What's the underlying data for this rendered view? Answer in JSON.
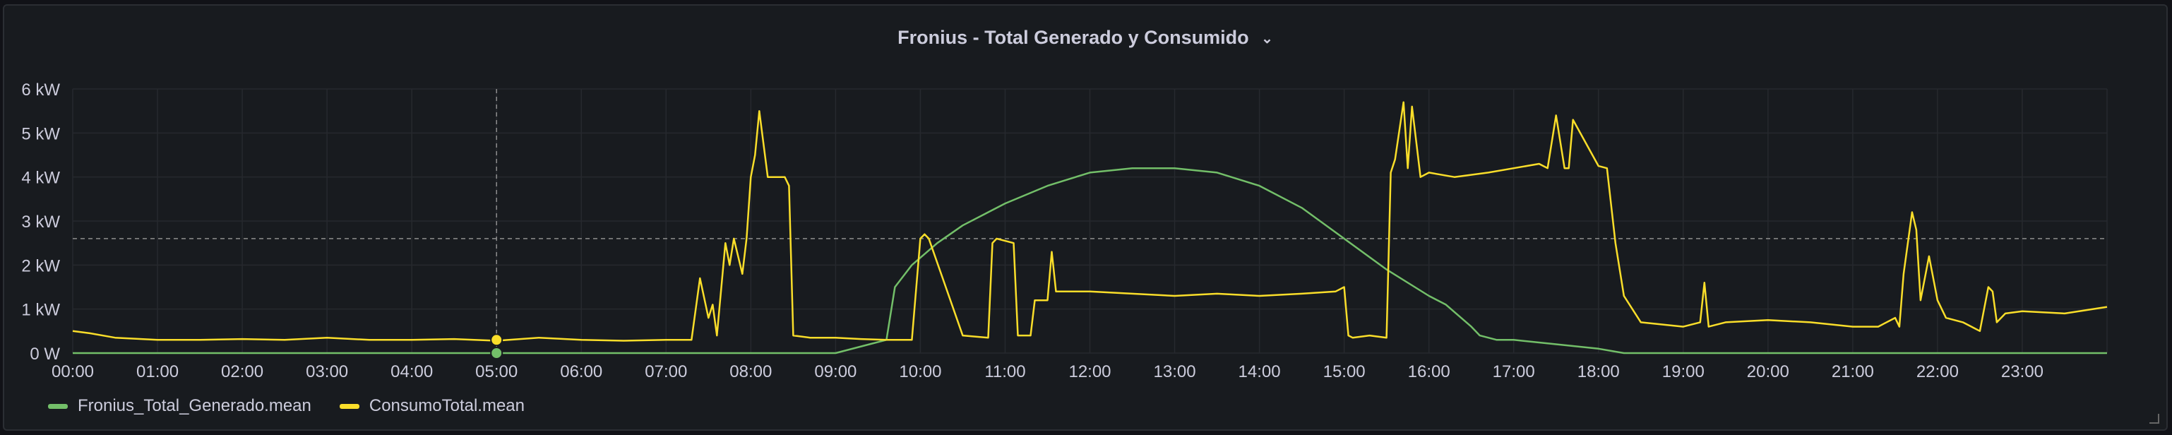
{
  "panel": {
    "title": "Fronius - Total Generado y Consumido",
    "menu_icon": "chevron-down-icon"
  },
  "chart_data": {
    "type": "line",
    "xlabel": "",
    "ylabel": "",
    "xlim": [
      0,
      24
    ],
    "ylim": [
      0,
      6
    ],
    "x_ticks": [
      "00:00",
      "01:00",
      "02:00",
      "03:00",
      "04:00",
      "05:00",
      "06:00",
      "07:00",
      "08:00",
      "09:00",
      "10:00",
      "11:00",
      "12:00",
      "13:00",
      "14:00",
      "15:00",
      "16:00",
      "17:00",
      "18:00",
      "19:00",
      "20:00",
      "21:00",
      "22:00",
      "23:00"
    ],
    "y_ticks": [
      "0 W",
      "1 kW",
      "2 kW",
      "3 kW",
      "4 kW",
      "5 kW",
      "6 kW"
    ],
    "grid": true,
    "legend": "bottom-left",
    "threshold_kw": 2.6,
    "cursor_time": 5.0,
    "series": [
      {
        "name": "Fronius_Total_Generado.mean",
        "color": "#73bf69",
        "x": [
          0,
          9.0,
          9.4,
          9.6,
          9.7,
          9.9,
          10.2,
          10.5,
          11.0,
          11.5,
          12.0,
          12.5,
          13.0,
          13.5,
          14.0,
          14.5,
          15.0,
          15.5,
          16.0,
          16.2,
          16.5,
          16.6,
          16.8,
          17.0,
          17.5,
          18.0,
          18.3,
          18.5,
          24
        ],
        "y": [
          0,
          0.0,
          0.2,
          0.3,
          1.5,
          2.0,
          2.5,
          2.9,
          3.4,
          3.8,
          4.1,
          4.2,
          4.2,
          4.1,
          3.8,
          3.3,
          2.6,
          1.9,
          1.3,
          1.1,
          0.6,
          0.4,
          0.3,
          0.3,
          0.2,
          0.1,
          0.0,
          0.0,
          0
        ]
      },
      {
        "name": "ConsumoTotal.mean",
        "color": "#fade2a",
        "x": [
          0,
          0.2,
          0.5,
          1.0,
          1.5,
          2.0,
          2.5,
          3.0,
          3.5,
          4.0,
          4.5,
          5.0,
          5.5,
          6.0,
          6.5,
          7.0,
          7.3,
          7.4,
          7.5,
          7.55,
          7.6,
          7.7,
          7.75,
          7.8,
          7.9,
          7.95,
          8.0,
          8.05,
          8.1,
          8.2,
          8.3,
          8.35,
          8.4,
          8.45,
          8.5,
          8.7,
          9.0,
          9.3,
          9.6,
          9.9,
          10.0,
          10.05,
          10.1,
          10.5,
          10.8,
          10.85,
          10.9,
          11.1,
          11.15,
          11.3,
          11.35,
          11.5,
          11.55,
          11.6,
          12.0,
          12.5,
          13.0,
          13.5,
          14.0,
          14.5,
          14.9,
          15.0,
          15.05,
          15.1,
          15.3,
          15.5,
          15.55,
          15.6,
          15.7,
          15.75,
          15.8,
          15.9,
          16.0,
          16.3,
          16.7,
          17.0,
          17.3,
          17.4,
          17.5,
          17.6,
          17.65,
          17.7,
          18.0,
          18.1,
          18.2,
          18.3,
          18.5,
          19.0,
          19.2,
          19.25,
          19.3,
          19.5,
          20.0,
          20.5,
          21.0,
          21.3,
          21.5,
          21.55,
          21.6,
          21.7,
          21.75,
          21.8,
          21.9,
          22.0,
          22.1,
          22.3,
          22.5,
          22.6,
          22.65,
          22.7,
          22.8,
          23.0,
          23.5,
          24.0
        ],
        "y": [
          0.5,
          0.45,
          0.35,
          0.3,
          0.3,
          0.32,
          0.3,
          0.35,
          0.3,
          0.3,
          0.32,
          0.28,
          0.35,
          0.3,
          0.28,
          0.3,
          0.3,
          1.7,
          0.8,
          1.1,
          0.4,
          2.5,
          2.0,
          2.6,
          1.8,
          2.6,
          4.0,
          4.5,
          5.5,
          4.0,
          4.0,
          4.0,
          4.0,
          3.8,
          0.4,
          0.35,
          0.35,
          0.32,
          0.3,
          0.3,
          2.6,
          2.7,
          2.6,
          0.4,
          0.35,
          2.5,
          2.6,
          2.5,
          0.4,
          0.4,
          1.2,
          1.2,
          2.3,
          1.4,
          1.4,
          1.35,
          1.3,
          1.35,
          1.3,
          1.35,
          1.4,
          1.5,
          0.4,
          0.35,
          0.4,
          0.35,
          4.1,
          4.4,
          5.7,
          4.2,
          5.6,
          4.0,
          4.1,
          4.0,
          4.1,
          4.2,
          4.3,
          4.2,
          5.4,
          4.2,
          4.2,
          5.3,
          4.25,
          4.2,
          2.5,
          1.3,
          0.7,
          0.6,
          0.7,
          1.6,
          0.6,
          0.7,
          0.75,
          0.7,
          0.6,
          0.6,
          0.8,
          0.6,
          1.8,
          3.2,
          2.8,
          1.2,
          2.2,
          1.2,
          0.8,
          0.7,
          0.5,
          1.5,
          1.4,
          0.7,
          0.9,
          0.95,
          0.9,
          1.05
        ]
      }
    ]
  }
}
